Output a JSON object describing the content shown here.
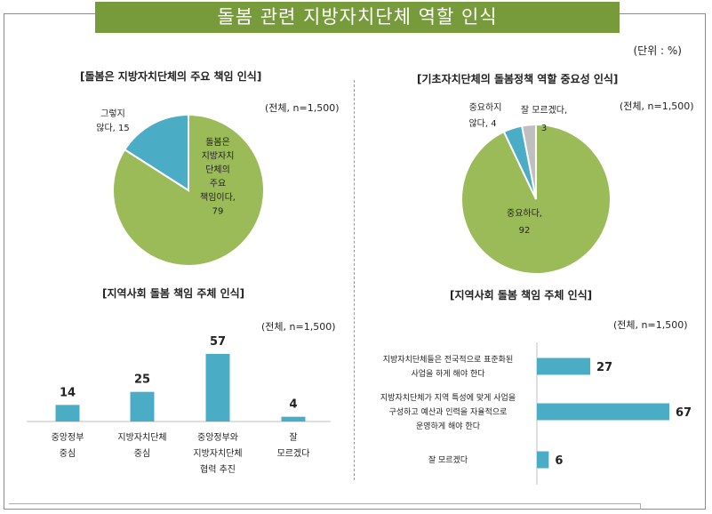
{
  "title": "돌봄 관련 지방자치단체 역할 인식",
  "unit": "(단위 : %)",
  "chart_data": [
    {
      "type": "pie",
      "title": "[돌봄은 지방자치단체의 주요 책임 인식]",
      "note": "(전체, n=1,500)",
      "slices": [
        {
          "label_lines": [
            "돌봄은",
            "지방자치",
            "단체의",
            "주요",
            "책임이다,"
          ],
          "value": 79,
          "color": "#9bbb59"
        },
        {
          "label_lines": [
            "그렇지",
            "않다, 15"
          ],
          "value": 15,
          "color": "#4bacc6"
        }
      ]
    },
    {
      "type": "pie",
      "title": "[기초자치단체의 돌봄정책 역할 중요성 인식]",
      "note": "(전체, n=1,500)",
      "slices": [
        {
          "label_lines": [
            "중요하다,"
          ],
          "value": 92,
          "color": "#9bbb59"
        },
        {
          "label_lines": [
            "중요하지",
            "않다, 4"
          ],
          "value": 4,
          "color": "#4bacc6"
        },
        {
          "label_lines": [
            "잘 모르겠다,"
          ],
          "value": 3,
          "color": "#bfbfbf"
        }
      ]
    },
    {
      "type": "bar",
      "title": "[지역사회 돌봄 책임 주체 인식]",
      "note": "(전체, n=1,500)",
      "orientation": "vertical",
      "categories": [
        [
          "중앙정부",
          "중심"
        ],
        [
          "지방자치단체",
          "중심"
        ],
        [
          "중앙정부와",
          "지방자치단체",
          "협력 추진"
        ],
        [
          "잘",
          "모르겠다"
        ]
      ],
      "values": [
        14,
        25,
        57,
        4
      ],
      "ylim": [
        0,
        60
      ]
    },
    {
      "type": "bar",
      "title": "[지역사회 돌봄 책임 주체 인식]",
      "note": "(전체, n=1,500)",
      "orientation": "horizontal",
      "categories": [
        [
          "지방자치단체들은 전국적으로 표준화된",
          "사업을 하게 해야 한다"
        ],
        [
          "지방자치단체가 지역 특성에 맞게 사업을",
          "구성하고 예산과 인력을 자율적으로",
          "운영하게 해야 한다"
        ],
        [
          "잘 모르겠다"
        ]
      ],
      "values": [
        27,
        67,
        6
      ],
      "xlim": [
        0,
        70
      ]
    }
  ]
}
